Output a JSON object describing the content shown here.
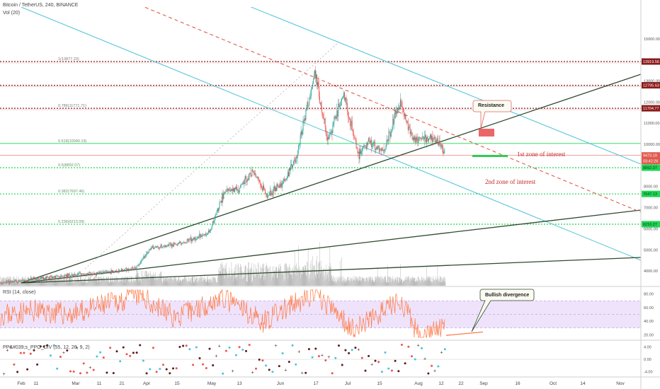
{
  "header": {
    "title": "Bitcoin / TetherUS, 240, BINANCE",
    "volume_label": "Vol (20)"
  },
  "colors": {
    "candle_up": "#26a69a",
    "candle_down": "#ef5350",
    "volume": "#b9b9b9",
    "cyan": "#4cc3d9",
    "trend_green": "#2e4a2e",
    "red_dash": "#e0493c",
    "dark_red": "#8b1a1a",
    "green_level": "#1fd655",
    "rsi_line": "#ff7a45",
    "rsi_band": "#efe3fb",
    "ppo_dark": "#5a1a1a",
    "ppo_red": "#ef5350",
    "ppo_cyan": "#4cc3d9"
  },
  "chart_data": [
    {
      "type": "line",
      "title": "Bitcoin / TetherUS, 240, BINANCE",
      "ylim": [
        3300,
        16500
      ],
      "y_ticks": [
        {
          "value": 15000,
          "label": "15000.00"
        },
        {
          "value": 14000,
          "label": "14000.00"
        },
        {
          "value": 13000,
          "label": "13000.00"
        },
        {
          "value": 12000,
          "label": "12000.00"
        },
        {
          "value": 11000,
          "label": "11000.00"
        },
        {
          "value": 10000,
          "label": "10000.00"
        },
        {
          "value": 9000,
          "label": "9000.00"
        },
        {
          "value": 8000,
          "label": "8000.00"
        },
        {
          "value": 7000,
          "label": "7000.00"
        },
        {
          "value": 6000,
          "label": "6000.00"
        },
        {
          "value": 5000,
          "label": "5000.00"
        },
        {
          "value": 4000,
          "label": "4000.00"
        }
      ],
      "x_ticks": [
        "Feb",
        "11",
        "Mar",
        "11",
        "21",
        "Apr",
        "15",
        "May",
        "13",
        "Jun",
        "17",
        "Jul",
        "15",
        "Aug",
        "12",
        "22",
        "Sep",
        "16",
        "Oct",
        "14",
        "Nov"
      ],
      "price_series": {
        "name": "BTCUSDT",
        "x": [
          "2019-01-28",
          "2019-02-18",
          "2019-03-18",
          "2019-04-01",
          "2019-04-08",
          "2019-04-22",
          "2019-05-06",
          "2019-05-13",
          "2019-05-20",
          "2019-05-27",
          "2019-06-03",
          "2019-06-10",
          "2019-06-17",
          "2019-06-21",
          "2019-06-26",
          "2019-07-02",
          "2019-07-08",
          "2019-07-10",
          "2019-07-17",
          "2019-07-22",
          "2019-07-29",
          "2019-08-06",
          "2019-08-12",
          "2019-08-19",
          "2019-08-25",
          "2019-08-28"
        ],
        "y": [
          3450,
          3700,
          3950,
          4150,
          5100,
          5300,
          5800,
          7700,
          7900,
          8700,
          7600,
          8100,
          9300,
          11200,
          13400,
          10200,
          11800,
          12400,
          9500,
          10200,
          9600,
          12000,
          10300,
          10300,
          10100,
          9470
        ]
      },
      "levels": [
        {
          "price": 13919.56,
          "label": "13919.56",
          "fib": "1(13877.23)",
          "style": "dark-red"
        },
        {
          "price": 12795.63,
          "label": "12795.63",
          "style": "dark-red"
        },
        {
          "price": 11704.77,
          "label": "11704.77",
          "fib": "0.786(11771.71)",
          "style": "dark-red"
        },
        {
          "price": 10040.19,
          "fib": "0.618(10040.19)",
          "style": "green-solid"
        },
        {
          "price": 9473.1,
          "label": "9473.10",
          "style": "price"
        },
        {
          "price": 8892.07,
          "label": "8892.07",
          "fib": "0.5(8892.07)",
          "style": "green-dotted"
        },
        {
          "price": 7647.13,
          "label": "7647.13",
          "fib": "0.382(7697.46)",
          "style": "green-dotted"
        },
        {
          "price": 6216.27,
          "label": "6216.27",
          "fib": "0.236(6213.09)",
          "style": "green-dotted"
        }
      ],
      "price_countdown": "03:42:26",
      "annotations": [
        {
          "text": "Resistance",
          "kind": "callout"
        },
        {
          "text": "1st zone of interest",
          "kind": "label"
        },
        {
          "text": "2nd zone of interest",
          "kind": "label"
        }
      ]
    },
    {
      "type": "line",
      "title": "RSI (14, close)",
      "ylim": [
        13,
        90
      ],
      "y_ticks": [
        {
          "value": 80,
          "label": "80.00"
        },
        {
          "value": 60,
          "label": "60.00"
        },
        {
          "value": 40,
          "label": "40.00"
        },
        {
          "value": 20,
          "label": "20.00"
        }
      ],
      "band": [
        30,
        70
      ],
      "series": {
        "x": [
          "2019-01-28",
          "2019-02-11",
          "2019-03-01",
          "2019-04-02",
          "2019-04-20",
          "2019-05-12",
          "2019-06-01",
          "2019-06-26",
          "2019-07-15",
          "2019-08-01",
          "2019-08-06",
          "2019-08-15",
          "2019-08-28"
        ],
        "y": [
          50,
          55,
          50,
          78,
          45,
          75,
          40,
          80,
          28,
          60,
          72,
          19,
          30
        ]
      },
      "annotations": [
        {
          "text": "Bullish divergence",
          "kind": "callout"
        }
      ]
    },
    {
      "type": "scatter",
      "title": "PP&#039;s_PPO_DIV (55, 12, 26, 9, 2)",
      "ylim": [
        -5.5,
        6
      ],
      "y_ticks": [
        {
          "value": 4,
          "label": "4.00"
        },
        {
          "value": 0,
          "label": "0.00"
        },
        {
          "value": -4,
          "label": "-4.00"
        }
      ]
    }
  ]
}
